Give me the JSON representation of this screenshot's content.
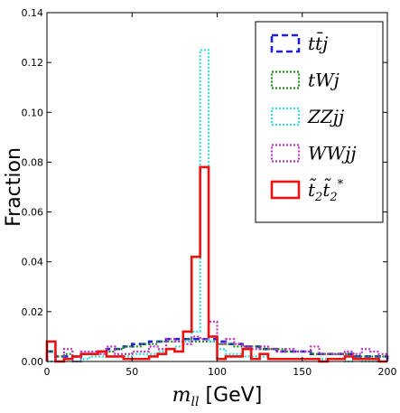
{
  "chart_data": {
    "type": "step-histogram",
    "xlabel_var": "m",
    "xlabel_sub": "ll",
    "xlabel_unit": "[GeV]",
    "ylabel": "Fraction",
    "xlim": [
      0,
      200
    ],
    "ylim": [
      0,
      0.14
    ],
    "xticks": [
      0,
      50,
      100,
      150,
      200
    ],
    "xtick_labels": [
      "0",
      "50",
      "100",
      "150",
      "200"
    ],
    "yticks": [
      0.0,
      0.02,
      0.04,
      0.06,
      0.08,
      0.1,
      0.12,
      0.14
    ],
    "ytick_labels": [
      "0.00",
      "0.02",
      "0.04",
      "0.06",
      "0.08",
      "0.10",
      "0.12",
      "0.14"
    ],
    "legend_position": "top-right",
    "bin_edges": [
      0,
      5,
      10,
      15,
      20,
      25,
      30,
      35,
      40,
      45,
      50,
      55,
      60,
      65,
      70,
      75,
      80,
      85,
      90,
      95,
      100,
      105,
      110,
      115,
      120,
      125,
      130,
      135,
      140,
      145,
      150,
      155,
      160,
      165,
      170,
      175,
      180,
      185,
      190,
      195,
      200
    ],
    "series": [
      {
        "name": "tt̄j",
        "label_parts": [
          "t",
          "t̄",
          "j"
        ],
        "color": "#1f1fd6",
        "dash": "7,4",
        "width": 2.6,
        "values": [
          0.004,
          0.002,
          0.002,
          0.002,
          0.003,
          0.003,
          0.004,
          0.005,
          0.005,
          0.006,
          0.007,
          0.007,
          0.008,
          0.008,
          0.009,
          0.009,
          0.009,
          0.009,
          0.009,
          0.009,
          0.008,
          0.007,
          0.007,
          0.006,
          0.006,
          0.005,
          0.005,
          0.004,
          0.004,
          0.004,
          0.004,
          0.003,
          0.003,
          0.003,
          0.003,
          0.003,
          0.002,
          0.002,
          0.002,
          0.002
        ]
      },
      {
        "name": "tWj",
        "label_parts": [
          "t",
          "W",
          "j"
        ],
        "color": "#228b22",
        "dash": "2,2",
        "width": 2.2,
        "values": [
          0.004,
          0.002,
          0.003,
          0.002,
          0.003,
          0.003,
          0.004,
          0.004,
          0.005,
          0.006,
          0.006,
          0.007,
          0.007,
          0.008,
          0.008,
          0.008,
          0.009,
          0.008,
          0.008,
          0.008,
          0.007,
          0.007,
          0.006,
          0.006,
          0.006,
          0.005,
          0.005,
          0.005,
          0.004,
          0.004,
          0.004,
          0.003,
          0.003,
          0.003,
          0.003,
          0.003,
          0.002,
          0.002,
          0.002,
          0.002
        ]
      },
      {
        "name": "ZZjj",
        "label_parts": [
          "Z",
          "Z",
          "j",
          "j"
        ],
        "color": "#33dddd",
        "dash": "2,2",
        "width": 2.2,
        "values": [
          0.0,
          0.0,
          0.001,
          0.0,
          0.001,
          0.002,
          0.002,
          0.002,
          0.002,
          0.002,
          0.003,
          0.003,
          0.003,
          0.004,
          0.005,
          0.006,
          0.008,
          0.012,
          0.125,
          0.008,
          0.005,
          0.003,
          0.003,
          0.002,
          0.002,
          0.002,
          0.001,
          0.001,
          0.001,
          0.001,
          0.001,
          0.001,
          0.001,
          0.001,
          0.001,
          0.0,
          0.001,
          0.0,
          0.0,
          0.0
        ]
      },
      {
        "name": "WWjj",
        "label_parts": [
          "W",
          "W",
          "j",
          "j"
        ],
        "color": "#bb33bb",
        "dash": "2,2",
        "width": 2.2,
        "values": [
          0.008,
          0.0,
          0.005,
          0.0,
          0.004,
          0.004,
          0.003,
          0.006,
          0.003,
          0.003,
          0.004,
          0.004,
          0.006,
          0.005,
          0.009,
          0.008,
          0.007,
          0.01,
          0.009,
          0.016,
          0.007,
          0.009,
          0.007,
          0.006,
          0.005,
          0.006,
          0.005,
          0.004,
          0.005,
          0.004,
          0.004,
          0.006,
          0.003,
          0.003,
          0.003,
          0.004,
          0.003,
          0.005,
          0.004,
          0.003
        ]
      },
      {
        "name": "t̃₂t̃₂*",
        "label_parts": [
          "t̃",
          "2",
          "t̃",
          "2",
          "*"
        ],
        "color": "#ee1111",
        "dash": "",
        "width": 2.6,
        "values": [
          0.008,
          0.0,
          0.001,
          0.002,
          0.003,
          0.003,
          0.004,
          0.002,
          0.002,
          0.001,
          0.001,
          0.001,
          0.002,
          0.003,
          0.005,
          0.004,
          0.012,
          0.042,
          0.078,
          0.01,
          0.001,
          0.002,
          0.002,
          0.005,
          0.001,
          0.003,
          0.001,
          0.001,
          0.001,
          0.001,
          0.001,
          0.001,
          0.0,
          0.001,
          0.001,
          0.002,
          0.001,
          0.001,
          0.001,
          0.0
        ]
      }
    ]
  }
}
